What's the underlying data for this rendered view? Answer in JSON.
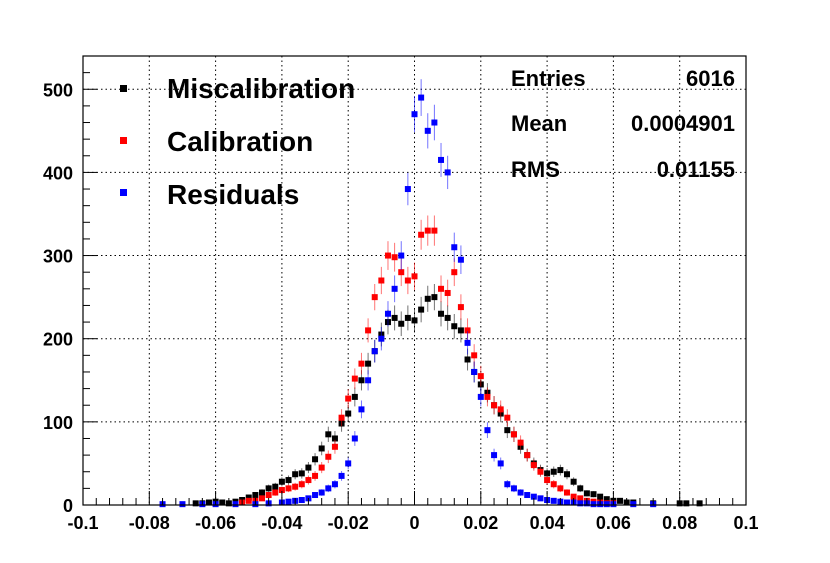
{
  "chart_data": {
    "type": "scatter",
    "title": "",
    "xlabel": "",
    "ylabel": "",
    "xlim": [
      -0.1,
      0.1
    ],
    "ylim": [
      0,
      540
    ],
    "grid": true,
    "legend_position": "top-left",
    "x_ticks": [
      -0.1,
      -0.08,
      -0.06,
      -0.04,
      -0.02,
      0,
      0.02,
      0.04,
      0.06,
      0.08,
      0.1
    ],
    "x_tick_labels": [
      "-0.1",
      "-0.08",
      "-0.06",
      "-0.04",
      "-0.02",
      "0",
      "0.02",
      "0.04",
      "0.06",
      "0.08",
      "0.1"
    ],
    "y_ticks": [
      0,
      100,
      200,
      300,
      400,
      500
    ],
    "y_tick_labels": [
      "0",
      "100",
      "200",
      "300",
      "400",
      "500"
    ],
    "stats": {
      "entries_label": "Entries",
      "entries_value": "6016",
      "mean_label": "Mean",
      "mean_value": "0.0004901",
      "rms_label": "RMS",
      "rms_value": "0.01155"
    },
    "series": [
      {
        "name": "Miscalibration",
        "color": "#000000",
        "x": [
          -0.066,
          -0.064,
          -0.062,
          -0.06,
          -0.058,
          -0.056,
          -0.054,
          -0.052,
          -0.05,
          -0.048,
          -0.046,
          -0.044,
          -0.042,
          -0.04,
          -0.038,
          -0.036,
          -0.034,
          -0.032,
          -0.03,
          -0.028,
          -0.026,
          -0.024,
          -0.022,
          -0.02,
          -0.018,
          -0.016,
          -0.014,
          -0.012,
          -0.01,
          -0.008,
          -0.006,
          -0.004,
          -0.002,
          0,
          0.002,
          0.004,
          0.006,
          0.008,
          0.01,
          0.012,
          0.014,
          0.016,
          0.018,
          0.02,
          0.022,
          0.024,
          0.026,
          0.028,
          0.03,
          0.032,
          0.034,
          0.036,
          0.038,
          0.04,
          0.042,
          0.044,
          0.046,
          0.048,
          0.05,
          0.052,
          0.054,
          0.056,
          0.058,
          0.06,
          0.062,
          0.064,
          0.066,
          0.072,
          0.08,
          0.082,
          0.086
        ],
        "values": [
          2,
          2,
          3,
          4,
          3,
          2,
          4,
          6,
          9,
          12,
          15,
          20,
          22,
          28,
          30,
          37,
          38,
          45,
          55,
          68,
          85,
          80,
          98,
          110,
          130,
          150,
          170,
          185,
          205,
          220,
          225,
          218,
          225,
          222,
          235,
          248,
          250,
          230,
          225,
          215,
          210,
          175,
          160,
          145,
          135,
          120,
          110,
          90,
          85,
          70,
          60,
          50,
          42,
          38,
          40,
          42,
          37,
          28,
          20,
          14,
          13,
          10,
          7,
          5,
          5,
          3,
          3,
          2,
          2,
          2,
          2
        ],
        "errors": [
          1.4,
          1.4,
          1.7,
          2,
          1.7,
          1.4,
          2,
          2.4,
          3,
          3.5,
          3.9,
          4.5,
          4.7,
          5.3,
          5.5,
          6.1,
          6.2,
          6.7,
          7.4,
          8.2,
          9.2,
          8.9,
          9.9,
          10.5,
          11.4,
          12.2,
          13,
          13.6,
          14.3,
          14.8,
          15,
          14.8,
          15,
          14.9,
          15.3,
          15.7,
          15.8,
          15.2,
          15,
          14.7,
          14.5,
          13.2,
          12.6,
          12,
          11.6,
          11,
          10.5,
          9.5,
          9.2,
          8.4,
          7.7,
          7.1,
          6.5,
          6.2,
          6.3,
          6.5,
          6.1,
          5.3,
          4.5,
          3.7,
          3.6,
          3.2,
          2.6,
          2.2,
          2.2,
          1.7,
          1.7,
          1.4,
          1.4,
          1.4,
          1.4
        ]
      },
      {
        "name": "Calibration",
        "color": "#ff0000",
        "x": [
          -0.052,
          -0.05,
          -0.048,
          -0.046,
          -0.044,
          -0.042,
          -0.04,
          -0.038,
          -0.036,
          -0.034,
          -0.032,
          -0.03,
          -0.028,
          -0.026,
          -0.024,
          -0.022,
          -0.02,
          -0.018,
          -0.016,
          -0.014,
          -0.012,
          -0.01,
          -0.008,
          -0.006,
          -0.004,
          -0.002,
          0,
          0.002,
          0.004,
          0.006,
          0.008,
          0.01,
          0.012,
          0.014,
          0.016,
          0.018,
          0.02,
          0.022,
          0.024,
          0.026,
          0.028,
          0.03,
          0.032,
          0.034,
          0.036,
          0.038,
          0.04,
          0.042,
          0.044,
          0.046,
          0.048,
          0.05,
          0.052,
          0.054,
          0.056,
          0.058,
          0.06
        ],
        "values": [
          3,
          5,
          5,
          8,
          12,
          15,
          18,
          20,
          22,
          25,
          30,
          35,
          45,
          58,
          70,
          105,
          128,
          152,
          170,
          210,
          250,
          270,
          300,
          298,
          280,
          270,
          275,
          325,
          330,
          330,
          260,
          255,
          280,
          238,
          210,
          180,
          155,
          130,
          120,
          115,
          105,
          85,
          75,
          60,
          48,
          40,
          30,
          25,
          20,
          15,
          10,
          8,
          5,
          4,
          3,
          2,
          2
        ],
        "errors": [
          1.7,
          2.2,
          2.2,
          2.8,
          3.5,
          3.9,
          4.2,
          4.5,
          4.7,
          5,
          5.5,
          5.9,
          6.7,
          7.6,
          8.4,
          10.2,
          11.3,
          12.3,
          13,
          14.5,
          15.8,
          16.4,
          17.3,
          17.3,
          16.7,
          16.4,
          16.6,
          18,
          18.2,
          18.2,
          16.1,
          16,
          16.7,
          15.4,
          14.5,
          13.4,
          12.4,
          11.4,
          11,
          10.7,
          10.2,
          9.2,
          8.7,
          7.7,
          6.9,
          6.3,
          5.5,
          5,
          4.5,
          3.9,
          3.2,
          2.8,
          2.2,
          2,
          1.7,
          1.4,
          1.4
        ]
      },
      {
        "name": "Residuals",
        "color": "#0000ff",
        "x": [
          -0.076,
          -0.07,
          -0.064,
          -0.06,
          -0.054,
          -0.048,
          -0.044,
          -0.04,
          -0.038,
          -0.036,
          -0.034,
          -0.032,
          -0.03,
          -0.028,
          -0.026,
          -0.024,
          -0.022,
          -0.02,
          -0.018,
          -0.016,
          -0.014,
          -0.012,
          -0.01,
          -0.008,
          -0.006,
          -0.004,
          -0.002,
          0,
          0.002,
          0.004,
          0.006,
          0.008,
          0.01,
          0.012,
          0.014,
          0.016,
          0.018,
          0.02,
          0.022,
          0.024,
          0.026,
          0.028,
          0.03,
          0.032,
          0.034,
          0.036,
          0.038,
          0.04,
          0.042,
          0.044,
          0.046,
          0.048,
          0.05,
          0.052,
          0.054,
          0.056,
          0.058,
          0.06,
          0.066,
          0.072
        ],
        "values": [
          1,
          1,
          1,
          1,
          1,
          1,
          2,
          3,
          4,
          5,
          6,
          8,
          12,
          15,
          20,
          25,
          35,
          50,
          80,
          115,
          150,
          185,
          200,
          230,
          260,
          300,
          380,
          470,
          490,
          450,
          460,
          415,
          400,
          310,
          295,
          195,
          160,
          130,
          90,
          60,
          50,
          25,
          20,
          15,
          12,
          10,
          8,
          6,
          5,
          4,
          3,
          3,
          2,
          2,
          1,
          1,
          1,
          1,
          1,
          1
        ],
        "errors": [
          1,
          1,
          1,
          1,
          1,
          1,
          1.4,
          1.7,
          2,
          2.2,
          2.4,
          2.8,
          3.5,
          3.9,
          4.5,
          5,
          5.9,
          7.1,
          8.9,
          10.7,
          12.2,
          13.6,
          14.1,
          15.2,
          16.1,
          17.3,
          19.5,
          21.7,
          22.1,
          21.2,
          21.4,
          20.4,
          20,
          17.6,
          17.2,
          14,
          12.6,
          11.4,
          9.5,
          7.7,
          7.1,
          5,
          4.5,
          3.9,
          3.5,
          3.2,
          2.8,
          2.4,
          2.2,
          2,
          1.7,
          1.7,
          1.4,
          1.4,
          1,
          1,
          1,
          1,
          1,
          1
        ]
      }
    ]
  }
}
